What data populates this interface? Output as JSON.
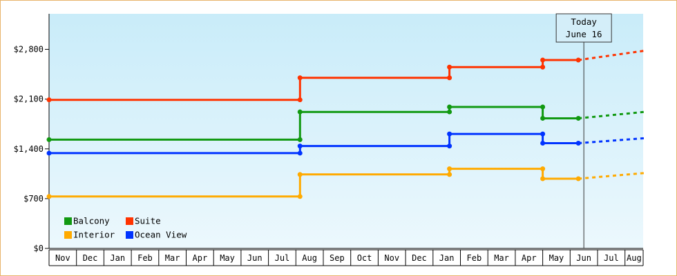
{
  "chart_data": {
    "type": "line",
    "step": true,
    "y_axis": {
      "min": 0,
      "max": 3300,
      "ticks": [
        0,
        700,
        1400,
        2100,
        2800
      ],
      "tick_labels": [
        "$0",
        "$700",
        "$1,400",
        "$2,100",
        "$2,800"
      ]
    },
    "x_axis": {
      "months": [
        "Nov",
        "Dec",
        "Jan",
        "Feb",
        "Mar",
        "Apr",
        "May",
        "Jun",
        "Jul",
        "Aug",
        "Sep",
        "Oct",
        "Nov",
        "Dec",
        "Jan",
        "Feb",
        "Mar",
        "Apr",
        "May",
        "Jun",
        "Jul",
        "Aug"
      ],
      "range": [
        0,
        21.7
      ]
    },
    "today_marker": {
      "line1": "Today",
      "line2": "June 16",
      "x": 19.5
    },
    "grid": false,
    "legend_placement": "bottom-left",
    "series": [
      {
        "name": "Suite",
        "color": "#ff3300",
        "points": [
          [
            0,
            2090
          ],
          [
            9.15,
            2090
          ],
          [
            9.15,
            2400
          ],
          [
            14.6,
            2400
          ],
          [
            14.6,
            2550
          ],
          [
            18.0,
            2550
          ],
          [
            18.0,
            2650
          ],
          [
            19.3,
            2650
          ]
        ],
        "projection": [
          [
            19.3,
            2650
          ],
          [
            21.7,
            2780
          ]
        ]
      },
      {
        "name": "Balcony",
        "color": "#119911",
        "points": [
          [
            0,
            1530
          ],
          [
            9.15,
            1530
          ],
          [
            9.15,
            1920
          ],
          [
            14.6,
            1920
          ],
          [
            14.6,
            1990
          ],
          [
            18.0,
            1990
          ],
          [
            18.0,
            1830
          ],
          [
            19.3,
            1830
          ]
        ],
        "projection": [
          [
            19.3,
            1830
          ],
          [
            21.7,
            1920
          ]
        ]
      },
      {
        "name": "Ocean View",
        "color": "#0033ff",
        "points": [
          [
            0,
            1340
          ],
          [
            9.15,
            1340
          ],
          [
            9.15,
            1440
          ],
          [
            14.6,
            1440
          ],
          [
            14.6,
            1610
          ],
          [
            18.0,
            1610
          ],
          [
            18.0,
            1480
          ],
          [
            19.3,
            1480
          ]
        ],
        "projection": [
          [
            19.3,
            1480
          ],
          [
            21.7,
            1550
          ]
        ]
      },
      {
        "name": "Interior",
        "color": "#ffaa00",
        "points": [
          [
            0,
            730
          ],
          [
            9.15,
            730
          ],
          [
            9.15,
            1040
          ],
          [
            14.6,
            1040
          ],
          [
            14.6,
            1120
          ],
          [
            18.0,
            1120
          ],
          [
            18.0,
            980
          ],
          [
            19.3,
            980
          ]
        ],
        "projection": [
          [
            19.3,
            980
          ],
          [
            21.7,
            1060
          ]
        ]
      }
    ],
    "legend": [
      {
        "label": "Balcony",
        "color": "#119911"
      },
      {
        "label": "Suite",
        "color": "#ff3300"
      },
      {
        "label": "Interior",
        "color": "#ffaa00"
      },
      {
        "label": "Ocean View",
        "color": "#0033ff"
      }
    ]
  }
}
